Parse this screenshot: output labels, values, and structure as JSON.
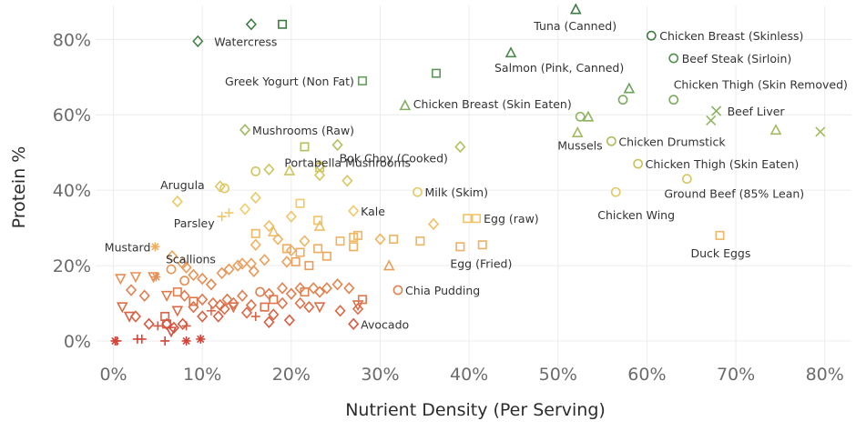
{
  "chart_data": {
    "type": "scatter",
    "title": "",
    "xlabel": "Nutrient Density (Per Serving)",
    "ylabel": "Protein %",
    "xlim": [
      -0.02,
      0.83
    ],
    "ylim": [
      -0.07,
      0.89
    ],
    "x_ticks": [
      0,
      0.1,
      0.2,
      0.3,
      0.4,
      0.5,
      0.6,
      0.7,
      0.8
    ],
    "x_tick_labels": [
      "0%",
      "10%",
      "20%",
      "30%",
      "40%",
      "50%",
      "60%",
      "70%",
      "80%"
    ],
    "y_ticks": [
      0,
      0.2,
      0.4,
      0.6,
      0.8
    ],
    "y_tick_labels": [
      "0%",
      "20%",
      "40%",
      "60%",
      "80%"
    ],
    "grid": true,
    "color_scale": [
      "#d0453a",
      "#e07a4c",
      "#eeaa60",
      "#f1cc68",
      "#c9c45e",
      "#93b760",
      "#5e9b5a",
      "#3f7a42"
    ],
    "labeled_points": [
      {
        "label": "Watercress",
        "x": 0.095,
        "y": 0.795,
        "shape": "diamond"
      },
      {
        "label": "Greek Yogurt (Non Fat)",
        "x": 0.28,
        "y": 0.69,
        "shape": "square"
      },
      {
        "label": "Tuna (Canned)",
        "x": 0.52,
        "y": 0.88,
        "shape": "triangle"
      },
      {
        "label": "Salmon (Pink, Canned)",
        "x": 0.447,
        "y": 0.765,
        "shape": "triangle"
      },
      {
        "label": "Chicken Breast (Skinless)",
        "x": 0.605,
        "y": 0.81,
        "shape": "circle"
      },
      {
        "label": "Beef Steak (Sirloin)",
        "x": 0.63,
        "y": 0.75,
        "shape": "circle"
      },
      {
        "label": "Chicken Thigh (Skin Removed)",
        "x": 0.63,
        "y": 0.64,
        "shape": "circle"
      },
      {
        "label": "Chicken Breast (Skin Eaten)",
        "x": 0.328,
        "y": 0.625,
        "shape": "triangle"
      },
      {
        "label": "Beef Liver",
        "x": 0.678,
        "y": 0.61,
        "shape": "x"
      },
      {
        "label": "Mushrooms (Raw)",
        "x": 0.148,
        "y": 0.56,
        "shape": "diamond"
      },
      {
        "label": "Mussels",
        "x": 0.522,
        "y": 0.553,
        "shape": "triangle"
      },
      {
        "label": "Chicken Drumstick",
        "x": 0.56,
        "y": 0.53,
        "shape": "circle"
      },
      {
        "label": "Portabella Mushrooms",
        "x": 0.232,
        "y": 0.46,
        "shape": "square"
      },
      {
        "label": "Bok Choy (Cooked)",
        "x": 0.252,
        "y": 0.52,
        "shape": "diamond"
      },
      {
        "label": "Chicken Thigh (Skin Eaten)",
        "x": 0.59,
        "y": 0.47,
        "shape": "circle"
      },
      {
        "label": "Ground Beef (85% Lean)",
        "x": 0.645,
        "y": 0.43,
        "shape": "circle"
      },
      {
        "label": "Arugula",
        "x": 0.12,
        "y": 0.41,
        "shape": "diamond"
      },
      {
        "label": "Milk (Skim)",
        "x": 0.342,
        "y": 0.395,
        "shape": "circle"
      },
      {
        "label": "Chicken Wing",
        "x": 0.565,
        "y": 0.395,
        "shape": "circle"
      },
      {
        "label": "Kale",
        "x": 0.27,
        "y": 0.345,
        "shape": "diamond"
      },
      {
        "label": "Parsley",
        "x": 0.122,
        "y": 0.33,
        "shape": "plus"
      },
      {
        "label": "Egg (raw)",
        "x": 0.398,
        "y": 0.325,
        "shape": "square"
      },
      {
        "label": "Scallions",
        "x": 0.066,
        "y": 0.225,
        "shape": "diamond"
      },
      {
        "label": "Mustard",
        "x": 0.047,
        "y": 0.25,
        "shape": "asterisk"
      },
      {
        "label": "Duck Eggs",
        "x": 0.682,
        "y": 0.28,
        "shape": "square"
      },
      {
        "label": "Egg (Fried)",
        "x": 0.39,
        "y": 0.25,
        "shape": "square"
      },
      {
        "label": "Chia Pudding",
        "x": 0.32,
        "y": 0.135,
        "shape": "circle"
      },
      {
        "label": "Avocado",
        "x": 0.27,
        "y": 0.045,
        "shape": "diamond"
      }
    ],
    "other_points": [
      {
        "x": 0.19,
        "y": 0.84,
        "shape": "square"
      },
      {
        "x": 0.155,
        "y": 0.84,
        "shape": "diamond"
      },
      {
        "x": 0.363,
        "y": 0.71,
        "shape": "square"
      },
      {
        "x": 0.58,
        "y": 0.67,
        "shape": "triangle"
      },
      {
        "x": 0.573,
        "y": 0.64,
        "shape": "circle"
      },
      {
        "x": 0.534,
        "y": 0.595,
        "shape": "triangle"
      },
      {
        "x": 0.525,
        "y": 0.595,
        "shape": "circle"
      },
      {
        "x": 0.672,
        "y": 0.585,
        "shape": "x"
      },
      {
        "x": 0.745,
        "y": 0.56,
        "shape": "triangle"
      },
      {
        "x": 0.795,
        "y": 0.555,
        "shape": "x"
      },
      {
        "x": 0.39,
        "y": 0.515,
        "shape": "diamond"
      },
      {
        "x": 0.215,
        "y": 0.515,
        "shape": "square"
      },
      {
        "x": 0.232,
        "y": 0.465,
        "shape": "diamond"
      },
      {
        "x": 0.232,
        "y": 0.44,
        "shape": "diamond"
      },
      {
        "x": 0.263,
        "y": 0.425,
        "shape": "diamond"
      },
      {
        "x": 0.198,
        "y": 0.452,
        "shape": "triangle"
      },
      {
        "x": 0.175,
        "y": 0.455,
        "shape": "diamond"
      },
      {
        "x": 0.16,
        "y": 0.45,
        "shape": "circle"
      },
      {
        "x": 0.125,
        "y": 0.405,
        "shape": "circle"
      },
      {
        "x": 0.072,
        "y": 0.37,
        "shape": "diamond"
      },
      {
        "x": 0.16,
        "y": 0.38,
        "shape": "diamond"
      },
      {
        "x": 0.148,
        "y": 0.35,
        "shape": "diamond"
      },
      {
        "x": 0.13,
        "y": 0.34,
        "shape": "plus"
      },
      {
        "x": 0.175,
        "y": 0.305,
        "shape": "diamond"
      },
      {
        "x": 0.18,
        "y": 0.29,
        "shape": "triangle"
      },
      {
        "x": 0.2,
        "y": 0.33,
        "shape": "diamond"
      },
      {
        "x": 0.21,
        "y": 0.365,
        "shape": "square"
      },
      {
        "x": 0.23,
        "y": 0.32,
        "shape": "square"
      },
      {
        "x": 0.232,
        "y": 0.305,
        "shape": "triangle"
      },
      {
        "x": 0.3,
        "y": 0.27,
        "shape": "diamond"
      },
      {
        "x": 0.36,
        "y": 0.31,
        "shape": "diamond"
      },
      {
        "x": 0.408,
        "y": 0.325,
        "shape": "square"
      },
      {
        "x": 0.345,
        "y": 0.265,
        "shape": "square"
      },
      {
        "x": 0.315,
        "y": 0.27,
        "shape": "square"
      },
      {
        "x": 0.415,
        "y": 0.255,
        "shape": "square"
      },
      {
        "x": 0.275,
        "y": 0.28,
        "shape": "square"
      },
      {
        "x": 0.27,
        "y": 0.275,
        "shape": "square"
      },
      {
        "x": 0.255,
        "y": 0.265,
        "shape": "square"
      },
      {
        "x": 0.27,
        "y": 0.25,
        "shape": "square"
      },
      {
        "x": 0.31,
        "y": 0.2,
        "shape": "triangle"
      },
      {
        "x": 0.16,
        "y": 0.285,
        "shape": "square"
      },
      {
        "x": 0.16,
        "y": 0.255,
        "shape": "diamond"
      },
      {
        "x": 0.185,
        "y": 0.27,
        "shape": "diamond"
      },
      {
        "x": 0.195,
        "y": 0.245,
        "shape": "square"
      },
      {
        "x": 0.2,
        "y": 0.24,
        "shape": "diamond"
      },
      {
        "x": 0.215,
        "y": 0.265,
        "shape": "diamond"
      },
      {
        "x": 0.21,
        "y": 0.235,
        "shape": "square"
      },
      {
        "x": 0.23,
        "y": 0.245,
        "shape": "square"
      },
      {
        "x": 0.24,
        "y": 0.225,
        "shape": "square"
      },
      {
        "x": 0.205,
        "y": 0.21,
        "shape": "square"
      },
      {
        "x": 0.22,
        "y": 0.2,
        "shape": "square"
      },
      {
        "x": 0.195,
        "y": 0.21,
        "shape": "diamond"
      },
      {
        "x": 0.14,
        "y": 0.2,
        "shape": "diamond"
      },
      {
        "x": 0.13,
        "y": 0.19,
        "shape": "diamond"
      },
      {
        "x": 0.122,
        "y": 0.18,
        "shape": "diamond"
      },
      {
        "x": 0.145,
        "y": 0.205,
        "shape": "diamond"
      },
      {
        "x": 0.155,
        "y": 0.205,
        "shape": "diamond"
      },
      {
        "x": 0.158,
        "y": 0.185,
        "shape": "diamond"
      },
      {
        "x": 0.17,
        "y": 0.215,
        "shape": "diamond"
      },
      {
        "x": 0.078,
        "y": 0.205,
        "shape": "diamond"
      },
      {
        "x": 0.082,
        "y": 0.195,
        "shape": "diamond"
      },
      {
        "x": 0.065,
        "y": 0.19,
        "shape": "circle"
      },
      {
        "x": 0.09,
        "y": 0.175,
        "shape": "diamond"
      },
      {
        "x": 0.1,
        "y": 0.165,
        "shape": "diamond"
      },
      {
        "x": 0.11,
        "y": 0.15,
        "shape": "diamond"
      },
      {
        "x": 0.08,
        "y": 0.16,
        "shape": "circle"
      },
      {
        "x": 0.045,
        "y": 0.17,
        "shape": "triangle-down"
      },
      {
        "x": 0.048,
        "y": 0.17,
        "shape": "asterisk"
      },
      {
        "x": 0.025,
        "y": 0.17,
        "shape": "triangle-down"
      },
      {
        "x": 0.008,
        "y": 0.165,
        "shape": "triangle-down"
      },
      {
        "x": 0.02,
        "y": 0.135,
        "shape": "diamond"
      },
      {
        "x": 0.035,
        "y": 0.12,
        "shape": "diamond"
      },
      {
        "x": 0.06,
        "y": 0.12,
        "shape": "triangle-down"
      },
      {
        "x": 0.072,
        "y": 0.13,
        "shape": "square"
      },
      {
        "x": 0.08,
        "y": 0.12,
        "shape": "diamond"
      },
      {
        "x": 0.09,
        "y": 0.105,
        "shape": "square"
      },
      {
        "x": 0.1,
        "y": 0.11,
        "shape": "diamond"
      },
      {
        "x": 0.112,
        "y": 0.1,
        "shape": "diamond"
      },
      {
        "x": 0.12,
        "y": 0.095,
        "shape": "diamond"
      },
      {
        "x": 0.128,
        "y": 0.11,
        "shape": "diamond"
      },
      {
        "x": 0.135,
        "y": 0.1,
        "shape": "diamond"
      },
      {
        "x": 0.145,
        "y": 0.12,
        "shape": "diamond"
      },
      {
        "x": 0.155,
        "y": 0.095,
        "shape": "diamond"
      },
      {
        "x": 0.165,
        "y": 0.13,
        "shape": "circle"
      },
      {
        "x": 0.175,
        "y": 0.125,
        "shape": "diamond"
      },
      {
        "x": 0.18,
        "y": 0.11,
        "shape": "square"
      },
      {
        "x": 0.19,
        "y": 0.14,
        "shape": "diamond"
      },
      {
        "x": 0.2,
        "y": 0.125,
        "shape": "diamond"
      },
      {
        "x": 0.21,
        "y": 0.14,
        "shape": "diamond"
      },
      {
        "x": 0.215,
        "y": 0.13,
        "shape": "square"
      },
      {
        "x": 0.225,
        "y": 0.14,
        "shape": "diamond"
      },
      {
        "x": 0.232,
        "y": 0.13,
        "shape": "diamond"
      },
      {
        "x": 0.24,
        "y": 0.14,
        "shape": "diamond"
      },
      {
        "x": 0.252,
        "y": 0.15,
        "shape": "diamond"
      },
      {
        "x": 0.265,
        "y": 0.14,
        "shape": "diamond"
      },
      {
        "x": 0.28,
        "y": 0.11,
        "shape": "square"
      },
      {
        "x": 0.275,
        "y": 0.095,
        "shape": "triangle-down"
      },
      {
        "x": 0.275,
        "y": 0.085,
        "shape": "diamond"
      },
      {
        "x": 0.01,
        "y": 0.09,
        "shape": "triangle-down"
      },
      {
        "x": 0.018,
        "y": 0.065,
        "shape": "triangle-down"
      },
      {
        "x": 0.025,
        "y": 0.065,
        "shape": "diamond"
      },
      {
        "x": 0.04,
        "y": 0.045,
        "shape": "diamond"
      },
      {
        "x": 0.05,
        "y": 0.04,
        "shape": "plus"
      },
      {
        "x": 0.058,
        "y": 0.065,
        "shape": "square"
      },
      {
        "x": 0.06,
        "y": 0.045,
        "shape": "diamond"
      },
      {
        "x": 0.068,
        "y": 0.035,
        "shape": "diamond"
      },
      {
        "x": 0.072,
        "y": 0.08,
        "shape": "triangle-down"
      },
      {
        "x": 0.078,
        "y": 0.045,
        "shape": "diamond"
      },
      {
        "x": 0.09,
        "y": 0.09,
        "shape": "diamond"
      },
      {
        "x": 0.1,
        "y": 0.065,
        "shape": "diamond"
      },
      {
        "x": 0.11,
        "y": 0.08,
        "shape": "plus"
      },
      {
        "x": 0.118,
        "y": 0.065,
        "shape": "diamond"
      },
      {
        "x": 0.125,
        "y": 0.085,
        "shape": "diamond"
      },
      {
        "x": 0.135,
        "y": 0.09,
        "shape": "triangle-down"
      },
      {
        "x": 0.15,
        "y": 0.075,
        "shape": "diamond"
      },
      {
        "x": 0.16,
        "y": 0.065,
        "shape": "plus"
      },
      {
        "x": 0.17,
        "y": 0.09,
        "shape": "square"
      },
      {
        "x": 0.18,
        "y": 0.07,
        "shape": "diamond"
      },
      {
        "x": 0.19,
        "y": 0.1,
        "shape": "diamond"
      },
      {
        "x": 0.198,
        "y": 0.055,
        "shape": "diamond"
      },
      {
        "x": 0.21,
        "y": 0.1,
        "shape": "diamond"
      },
      {
        "x": 0.22,
        "y": 0.09,
        "shape": "diamond"
      },
      {
        "x": 0.232,
        "y": 0.09,
        "shape": "triangle-down"
      },
      {
        "x": 0.255,
        "y": 0.08,
        "shape": "diamond"
      },
      {
        "x": 0.175,
        "y": 0.05,
        "shape": "diamond"
      },
      {
        "x": 0.06,
        "y": 0.045,
        "shape": "square"
      },
      {
        "x": 0.065,
        "y": 0.025,
        "shape": "triangle-down"
      },
      {
        "x": 0.002,
        "y": 0.0,
        "shape": "asterisk"
      },
      {
        "x": 0.004,
        "y": 0.0,
        "shape": "plus"
      },
      {
        "x": 0.027,
        "y": 0.005,
        "shape": "plus"
      },
      {
        "x": 0.032,
        "y": 0.005,
        "shape": "plus"
      },
      {
        "x": 0.058,
        "y": 0.0,
        "shape": "plus"
      },
      {
        "x": 0.082,
        "y": 0.0,
        "shape": "asterisk"
      },
      {
        "x": 0.098,
        "y": 0.005,
        "shape": "asterisk"
      },
      {
        "x": 0.082,
        "y": 0.04,
        "shape": "plus"
      }
    ]
  }
}
